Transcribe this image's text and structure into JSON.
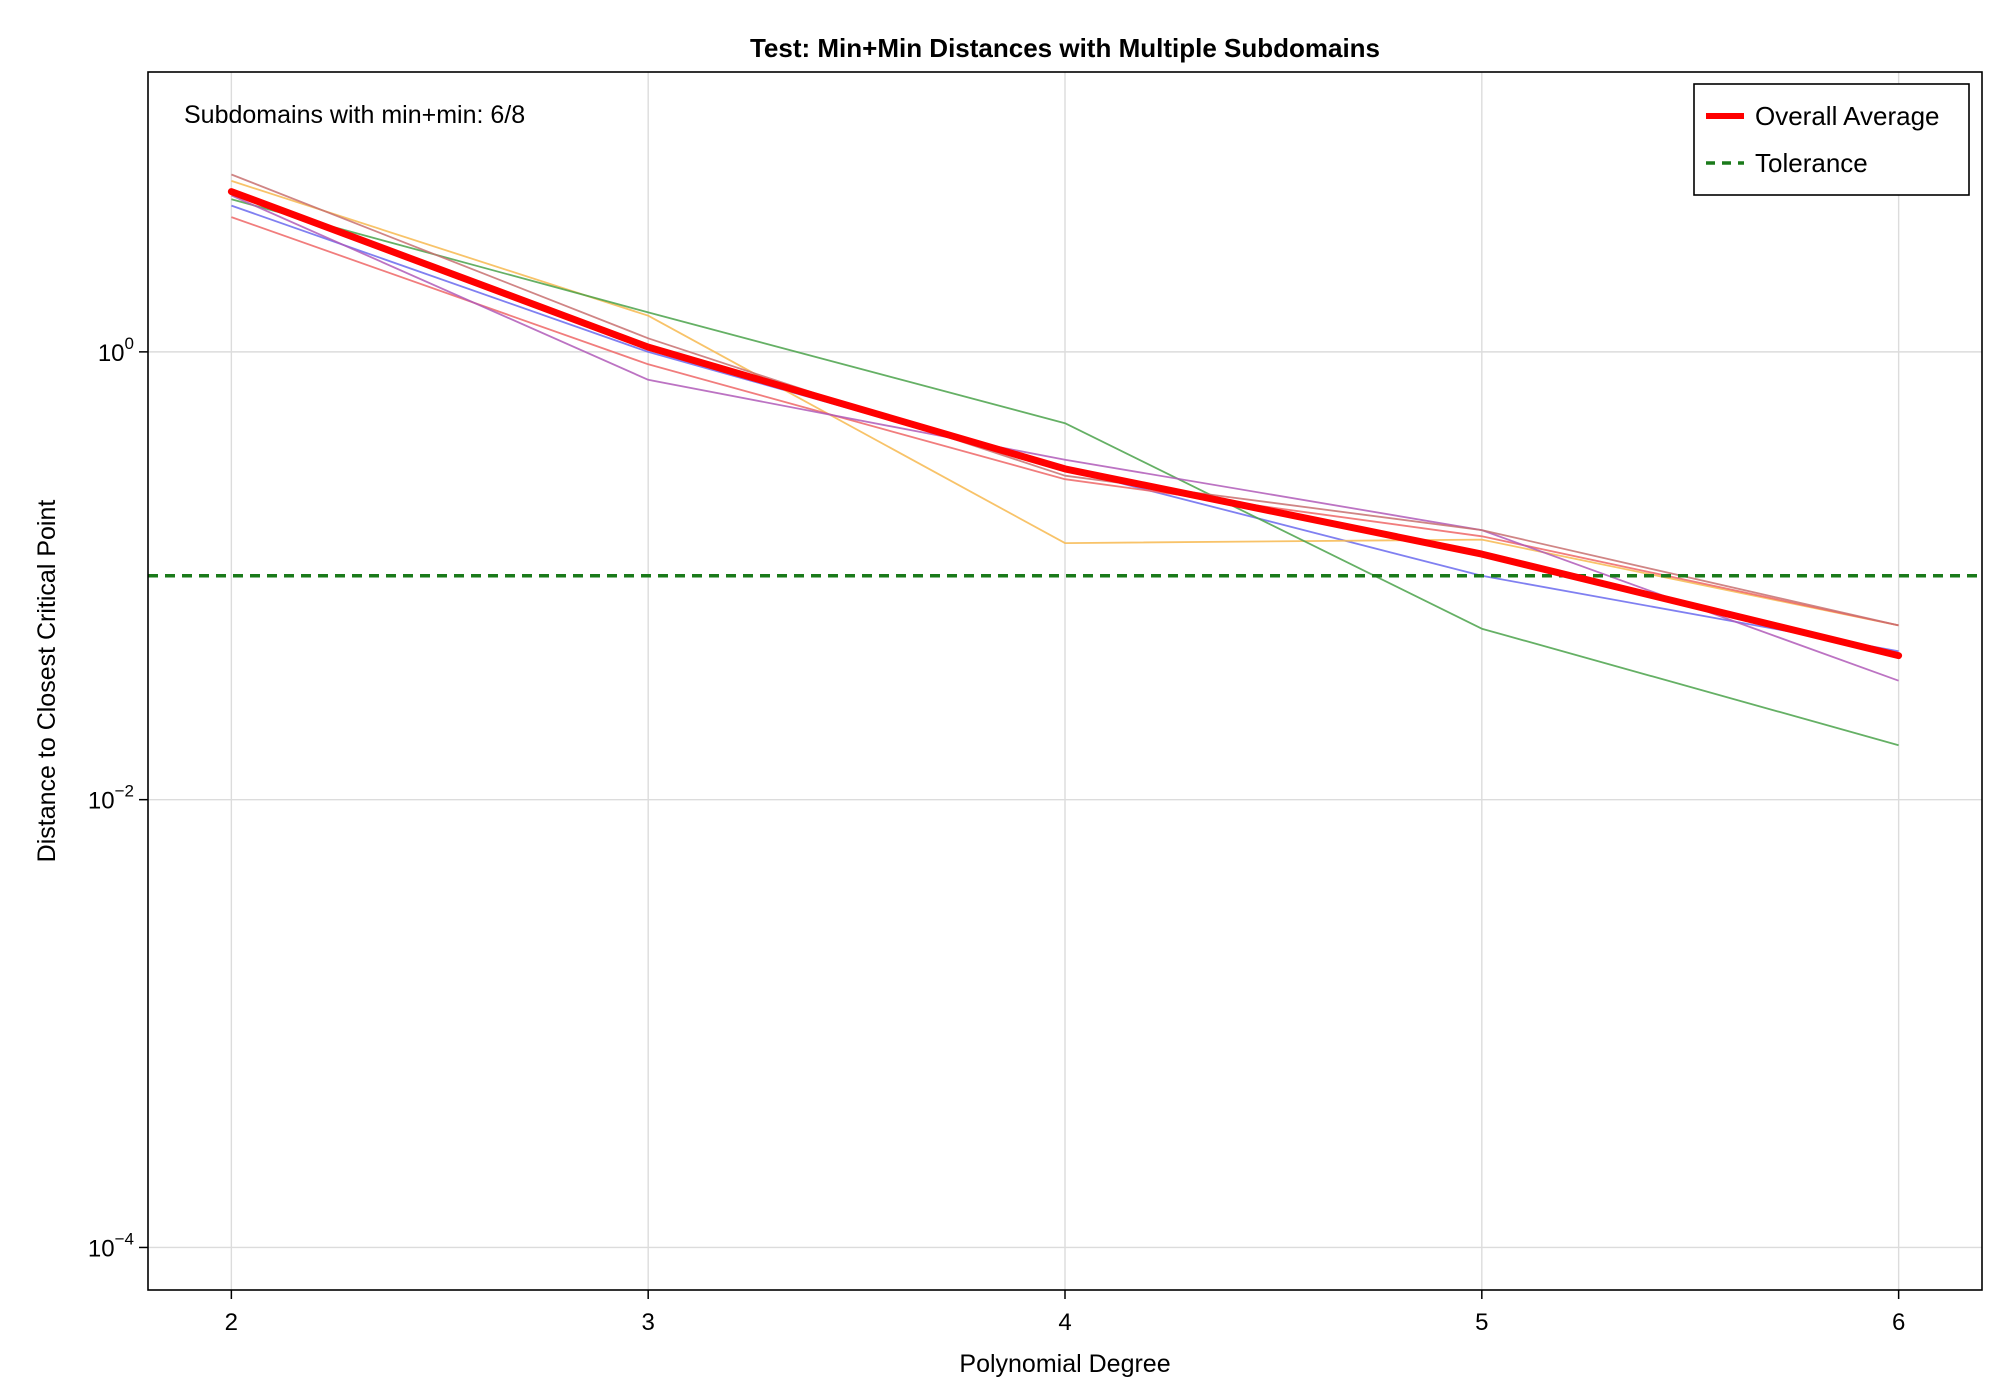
{
  "chart_data": {
    "type": "line",
    "title": "Test: Min+Min Distances with Multiple Subdomains",
    "xlabel": "Polynomial Degree",
    "ylabel": "Distance to Closest Critical Point",
    "y_scale": "log10",
    "xlim": [
      1.8,
      6.2
    ],
    "ylim_log10": [
      -4.19,
      1.25
    ],
    "x_ticks": [
      2,
      3,
      4,
      5,
      6
    ],
    "x_tick_labels": [
      "2",
      "3",
      "4",
      "5",
      "6"
    ],
    "y_ticks": [
      {
        "base": "10",
        "exponent": "−4",
        "value": 0.0001
      },
      {
        "base": "10",
        "exponent": "−2",
        "value": 0.01
      },
      {
        "base": "10",
        "exponent": "0",
        "value": 1
      }
    ],
    "grid": true,
    "legend_position": "top-right",
    "annotation": "Subdomains with min+min: 6/8",
    "x": [
      2,
      3,
      4,
      5,
      6
    ],
    "subdomains": [
      {
        "color": "#6a6aee",
        "values": [
          4.5,
          1.0,
          0.3,
          0.1,
          0.046
        ]
      },
      {
        "color": "#f7b84f",
        "values": [
          5.8,
          1.45,
          0.14,
          0.145,
          0.06
        ]
      },
      {
        "color": "#4aa24a",
        "values": [
          4.8,
          1.5,
          0.48,
          0.058,
          0.0175
        ]
      },
      {
        "color": "#ee6666",
        "values": [
          4.0,
          0.88,
          0.27,
          0.15,
          0.06
        ]
      },
      {
        "color": "#b05ab8",
        "values": [
          5.0,
          0.75,
          0.33,
          0.16,
          0.034
        ]
      },
      {
        "color": "#c87070",
        "values": [
          6.2,
          1.15,
          0.28,
          0.16,
          0.06
        ]
      }
    ],
    "series": [
      {
        "name": "Overall Average",
        "color": "#ff0000",
        "style": "solid",
        "values": [
          5.2,
          1.05,
          0.3,
          0.125,
          0.044
        ]
      },
      {
        "name": "Tolerance",
        "color": "#1a7a1a",
        "style": "dashed",
        "values": [
          0.1,
          0.1,
          0.1,
          0.1,
          0.1
        ]
      }
    ]
  }
}
